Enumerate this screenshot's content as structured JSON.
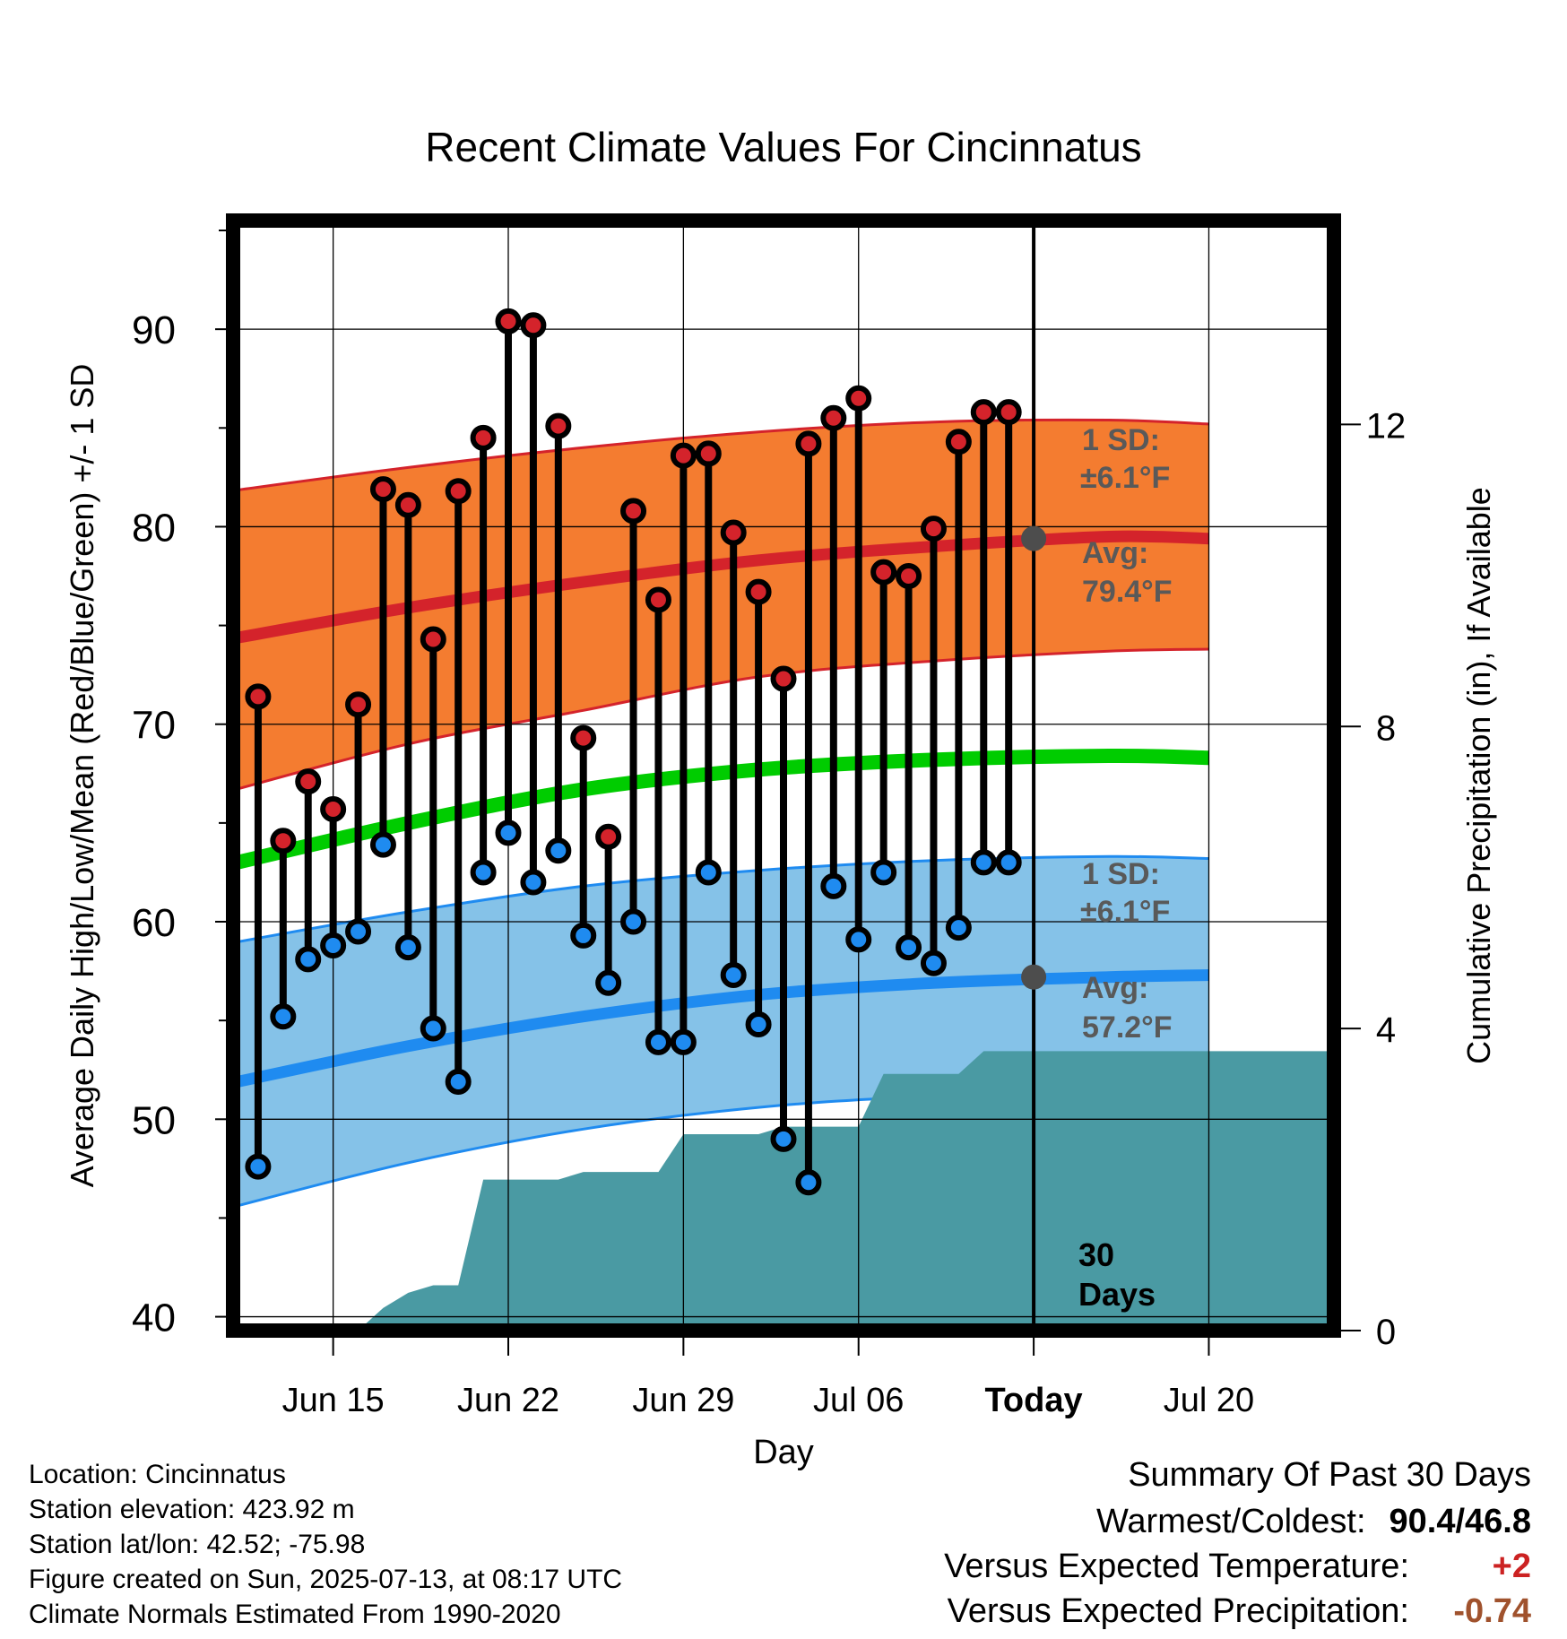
{
  "chart_data": {
    "type": "line",
    "title": "Recent Climate Values For Cincinnatus",
    "xlabel": "Day",
    "ylabel_left": "Average Daily High/Low/Mean (Red/Blue/Green) +/- 1 SD",
    "ylabel_right": "Cumulative Precipitation (in), If Available",
    "x_range": [
      "2025-06-11",
      "2025-07-25"
    ],
    "ylim_left": [
      39.3,
      95.5
    ],
    "ylim_right": [
      0,
      14.7
    ],
    "left_ticks": [
      40,
      50,
      60,
      70,
      80,
      90
    ],
    "right_ticks": [
      0,
      4,
      8,
      12
    ],
    "x_ticks": [
      {
        "date": "2025-06-15",
        "label": "Jun 15"
      },
      {
        "date": "2025-06-22",
        "label": "Jun 22"
      },
      {
        "date": "2025-06-29",
        "label": "Jun 29"
      },
      {
        "date": "2025-07-06",
        "label": "Jul 06"
      },
      {
        "date": "2025-07-13",
        "label": "Today"
      },
      {
        "date": "2025-07-20",
        "label": "Jul 20"
      }
    ],
    "grid": true,
    "today": "2025-07-13",
    "normals": {
      "dates": [
        "2025-06-11",
        "2025-06-18",
        "2025-06-25",
        "2025-07-02",
        "2025-07-09",
        "2025-07-16",
        "2025-07-20"
      ],
      "high_avg": [
        74.3,
        75.9,
        77.2,
        78.3,
        79.0,
        79.5,
        79.4
      ],
      "high_upper": [
        81.8,
        83.0,
        84.0,
        84.8,
        85.3,
        85.4,
        85.2
      ],
      "high_lower": [
        66.6,
        69.0,
        70.7,
        72.4,
        73.2,
        73.7,
        73.8
      ],
      "mean_avg": [
        62.9,
        65.0,
        66.7,
        67.7,
        68.2,
        68.4,
        68.3
      ],
      "low_avg": [
        51.8,
        53.7,
        55.2,
        56.3,
        56.9,
        57.2,
        57.3
      ],
      "low_upper": [
        58.9,
        60.5,
        61.8,
        62.6,
        63.1,
        63.3,
        63.2
      ],
      "low_lower": [
        45.5,
        47.8,
        49.5,
        50.6,
        51.2,
        51.6,
        51.7
      ]
    },
    "observed": {
      "dates": [
        "2025-06-12",
        "2025-06-13",
        "2025-06-14",
        "2025-06-15",
        "2025-06-16",
        "2025-06-17",
        "2025-06-18",
        "2025-06-19",
        "2025-06-20",
        "2025-06-21",
        "2025-06-22",
        "2025-06-23",
        "2025-06-24",
        "2025-06-25",
        "2025-06-26",
        "2025-06-27",
        "2025-06-28",
        "2025-06-29",
        "2025-06-30",
        "2025-07-01",
        "2025-07-02",
        "2025-07-03",
        "2025-07-04",
        "2025-07-05",
        "2025-07-06",
        "2025-07-07",
        "2025-07-08",
        "2025-07-09",
        "2025-07-10",
        "2025-07-11",
        "2025-07-12"
      ],
      "high": [
        71.4,
        64.1,
        67.1,
        65.7,
        71.0,
        81.9,
        81.1,
        74.3,
        81.8,
        84.5,
        90.4,
        90.2,
        85.1,
        69.3,
        64.3,
        80.8,
        76.3,
        83.6,
        83.7,
        79.7,
        76.7,
        72.3,
        84.2,
        85.5,
        86.5,
        77.7,
        77.5,
        79.9,
        84.3,
        85.8,
        85.8
      ],
      "low": [
        47.6,
        55.2,
        58.1,
        58.8,
        59.5,
        63.9,
        58.7,
        54.6,
        51.9,
        62.5,
        64.5,
        62.0,
        63.6,
        59.3,
        56.9,
        60.0,
        53.9,
        53.9,
        62.5,
        57.3,
        54.8,
        49.0,
        46.8,
        61.8,
        59.1,
        62.5,
        58.7,
        57.9,
        59.7,
        63.0,
        63.0
      ],
      "count": 31
    },
    "precipitation": {
      "dates": [
        "2025-06-16",
        "2025-06-17",
        "2025-06-18",
        "2025-06-19",
        "2025-06-20",
        "2025-06-21",
        "2025-06-22",
        "2025-06-23",
        "2025-06-24",
        "2025-06-25",
        "2025-06-26",
        "2025-06-27",
        "2025-06-28",
        "2025-06-29",
        "2025-06-30",
        "2025-07-01",
        "2025-07-02",
        "2025-07-03",
        "2025-07-04",
        "2025-07-05",
        "2025-07-06",
        "2025-07-07",
        "2025-07-08",
        "2025-07-09",
        "2025-07-10",
        "2025-07-11",
        "2025-07-12",
        "2025-07-24"
      ],
      "cumulative": [
        0,
        0.3,
        0.5,
        0.6,
        0.6,
        2.0,
        2.0,
        2.0,
        2.0,
        2.1,
        2.1,
        2.1,
        2.1,
        2.6,
        2.6,
        2.6,
        2.6,
        2.7,
        2.7,
        2.7,
        2.7,
        3.4,
        3.4,
        3.4,
        3.4,
        3.7,
        3.7,
        3.7
      ]
    },
    "colors": {
      "high": "#d4232b",
      "high_band": "#f47c30",
      "low": "#1f8bf0",
      "low_band": "#85c2e8",
      "mean": "#00cc00",
      "precip": "#4a9aa3",
      "avg_marker": "#4d4d4d",
      "label_gray": "#595959"
    },
    "annotations": {
      "high_sd": "1 SD:",
      "high_sd_value": "±6.1°F",
      "high_avg": "Avg:",
      "high_avg_value": "79.4°F",
      "low_sd": "1 SD:",
      "low_sd_value": "±6.1°F",
      "low_avg": "Avg:",
      "low_avg_value": "57.2°F",
      "days_number": "30",
      "days_word": "Days"
    }
  },
  "footer": {
    "location": "Location: Cincinnatus",
    "elevation": "Station elevation: 423.92 m",
    "latlon": "Station lat/lon: 42.52; -75.98",
    "created": "Figure created on Sun, 2025-07-13, at 08:17 UTC",
    "normals": "Climate Normals Estimated From 1990-2020"
  },
  "summary": {
    "title": "Summary Of Past 30 Days",
    "warmest_label": "Warmest/Coldest:",
    "warmest_value": "90.4/46.8",
    "temp_label": "Versus Expected Temperature:",
    "temp_value": "+2",
    "temp_color": "#cc2222",
    "precip_label": "Versus Expected Precipitation:",
    "precip_value": "-0.74",
    "precip_color": "#a0522d"
  }
}
